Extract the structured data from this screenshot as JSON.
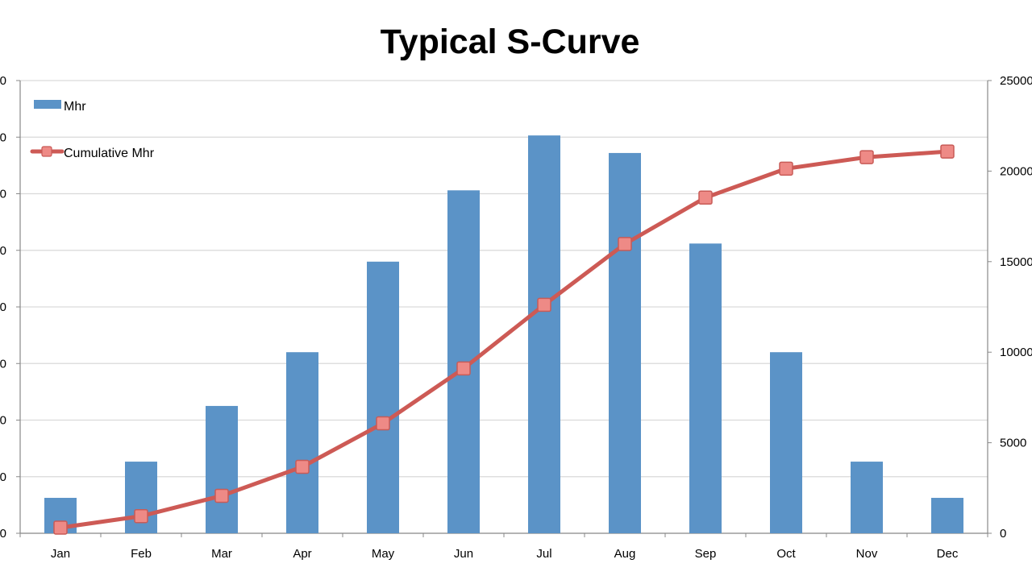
{
  "chart_data": {
    "type": "bar+line",
    "title": "Typical S-Curve",
    "categories": [
      "Jan",
      "Feb",
      "Mar",
      "Apr",
      "May",
      "Jun",
      "Jul",
      "Aug",
      "Sep",
      "Oct",
      "Nov",
      "Dec"
    ],
    "series": [
      {
        "name": "Mhr",
        "type": "bar",
        "axis": "left",
        "color": "#5b93c7",
        "values": [
          313,
          633,
          1125,
          1600,
          2400,
          3030,
          3515,
          3360,
          2560,
          1600,
          633,
          313
        ]
      },
      {
        "name": "Cumulative Mhr",
        "type": "line",
        "axis": "right",
        "color": "#cd5a55",
        "marker": "square",
        "values": [
          313,
          946,
          2071,
          3671,
          6071,
          9101,
          12616,
          15976,
          18536,
          20136,
          20769,
          21082
        ]
      }
    ],
    "left_axis": {
      "ylim": [
        0,
        4000
      ],
      "tick_labels_visible": [
        "0",
        "0",
        "0",
        "0",
        "0",
        "0",
        "0",
        "0",
        "0"
      ]
    },
    "right_axis": {
      "ylim": [
        0,
        25000
      ],
      "ticks": [
        "0",
        "5000",
        "10000",
        "15000",
        "20000",
        "25000"
      ]
    },
    "xlabel": "",
    "ylabel": "",
    "grid": true,
    "legend_position": "top-left"
  }
}
